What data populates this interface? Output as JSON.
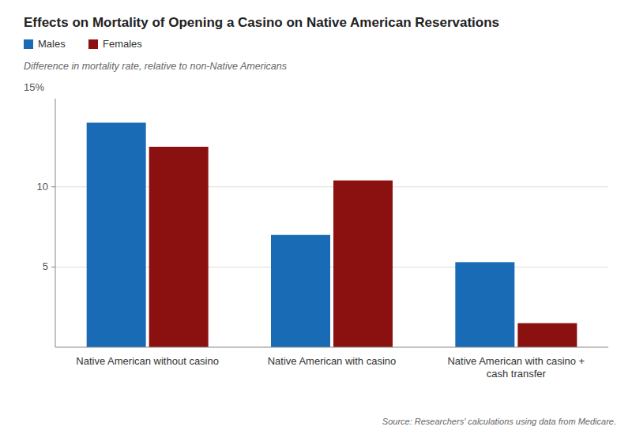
{
  "chart_data": {
    "type": "bar",
    "title": "Effects on Mortality of Opening a Casino on Native American Reservations",
    "subtitle": "Difference in mortality rate, relative to non-Native Americans",
    "annotations": [
      "15%"
    ],
    "source": "Source: Researchers' calculations using data from Medicare.",
    "categories": [
      "Native American without casino",
      "Native American with casino",
      "Native American with casino +\ncash transfer"
    ],
    "series": [
      {
        "name": "Males",
        "color": "#1A6BB5",
        "values": [
          14.0,
          7.0,
          5.3
        ]
      },
      {
        "name": "Females",
        "color": "#8B1010",
        "values": [
          12.5,
          10.4,
          1.5
        ]
      }
    ],
    "ylim": [
      0,
      15.5
    ],
    "yticks": [
      5,
      10
    ],
    "grid": true,
    "legend": "top-left"
  }
}
